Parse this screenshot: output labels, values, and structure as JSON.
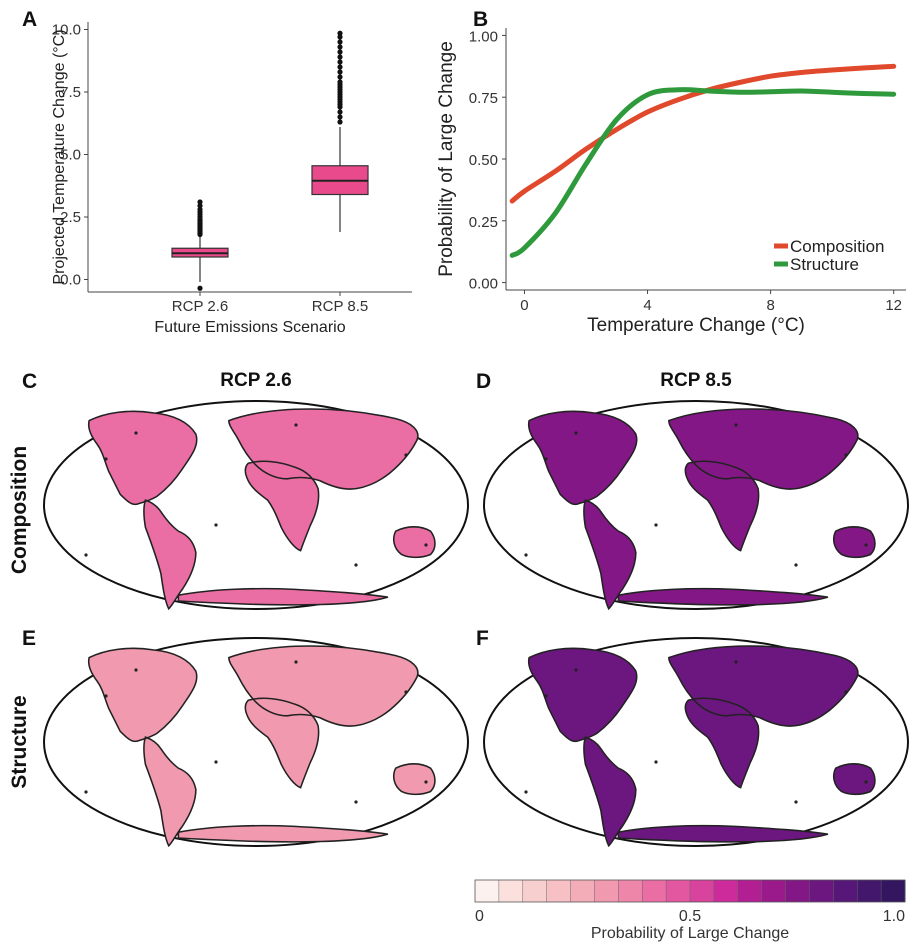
{
  "panel_letters": {
    "a": "A",
    "b": "B",
    "c": "C",
    "d": "D",
    "e": "E",
    "f": "F"
  },
  "colors": {
    "box_fill": "#e84a8b",
    "composition": "#e0492b",
    "structure": "#2e9a3c",
    "map_outline": "#111111"
  },
  "chart_data": [
    {
      "id": "A",
      "type": "box",
      "xlabel": "Future Emissions Scenario",
      "ylabel": "Projected Temperature Change (°C)",
      "categories": [
        "RCP 2.6",
        "RCP 8.5"
      ],
      "ylim": [
        -0.5,
        10.3
      ],
      "yticks": [
        0.0,
        2.5,
        5.0,
        7.5,
        10.0
      ],
      "ytick_labels": [
        "0.0",
        "2.5",
        "5.0",
        "7.5",
        "10.0"
      ],
      "boxes": [
        {
          "name": "RCP 2.6",
          "whisker_low": -0.1,
          "q1": 0.9,
          "median": 1.05,
          "q3": 1.25,
          "whisker_high": 1.75,
          "outliers": [
            1.8,
            1.85,
            1.9,
            1.95,
            2.0,
            2.05,
            2.1,
            2.15,
            2.2,
            2.25,
            2.3,
            2.35,
            2.4,
            2.5,
            2.6,
            2.7,
            2.8,
            2.95,
            3.1,
            -0.35
          ]
        },
        {
          "name": "RCP 8.5",
          "whisker_low": 1.9,
          "q1": 3.4,
          "median": 3.95,
          "q3": 4.55,
          "whisker_high": 6.1,
          "outliers": [
            6.3,
            6.5,
            6.7,
            6.9,
            7.0,
            7.1,
            7.2,
            7.3,
            7.4,
            7.5,
            7.6,
            7.7,
            7.8,
            7.9,
            8.1,
            8.3,
            8.5,
            8.7,
            8.9,
            9.1,
            9.3,
            9.5,
            9.7,
            9.85
          ]
        }
      ]
    },
    {
      "id": "B",
      "type": "line",
      "xlabel": "Temperature Change (°C)",
      "ylabel": "Probability of Large Change",
      "xlim": [
        -0.6,
        12.4
      ],
      "ylim": [
        -0.03,
        1.03
      ],
      "xticks": [
        0,
        4,
        8,
        12
      ],
      "xtick_labels": [
        "0",
        "4",
        "8",
        "12"
      ],
      "yticks": [
        0.0,
        0.25,
        0.5,
        0.75,
        1.0
      ],
      "ytick_labels": [
        "0.00",
        "0.25",
        "0.50",
        "0.75",
        "1.00"
      ],
      "legend_position": "bottom-right",
      "series": [
        {
          "name": "Composition",
          "color": "#e0492b",
          "x": [
            -0.4,
            0,
            1,
            2,
            3,
            4,
            5,
            6,
            7,
            8,
            9,
            10,
            11,
            12
          ],
          "y": [
            0.33,
            0.37,
            0.45,
            0.54,
            0.62,
            0.69,
            0.74,
            0.78,
            0.81,
            0.835,
            0.85,
            0.86,
            0.868,
            0.875
          ]
        },
        {
          "name": "Structure",
          "color": "#2e9a3c",
          "x": [
            -0.4,
            0,
            1,
            2,
            3,
            4,
            5,
            6,
            7,
            8,
            9,
            10,
            11,
            12
          ],
          "y": [
            0.11,
            0.14,
            0.28,
            0.48,
            0.66,
            0.76,
            0.78,
            0.775,
            0.77,
            0.772,
            0.775,
            0.77,
            0.765,
            0.762
          ]
        }
      ]
    },
    {
      "id": "C-F",
      "type": "heatmap",
      "column_headers": [
        "RCP 2.6",
        "RCP 8.5"
      ],
      "row_headers": [
        "Composition",
        "Structure"
      ],
      "panels": [
        {
          "letter": "C",
          "scenario": "RCP 2.6",
          "metric": "Composition",
          "mean_probability": 0.42
        },
        {
          "letter": "D",
          "scenario": "RCP 8.5",
          "metric": "Composition",
          "mean_probability": 0.78
        },
        {
          "letter": "E",
          "scenario": "RCP 2.6",
          "metric": "Structure",
          "mean_probability": 0.28
        },
        {
          "letter": "F",
          "scenario": "RCP 8.5",
          "metric": "Structure",
          "mean_probability": 0.8
        }
      ],
      "colorbar": {
        "title": "Probability of Large Change",
        "ticks": [
          0,
          0.5,
          1.0
        ],
        "tick_labels": [
          "0",
          "0.5",
          "1.0"
        ],
        "colors": [
          "#fdf1f0",
          "#fbe0de",
          "#f8cfcf",
          "#f6c0c4",
          "#f3adb8",
          "#f19aaf",
          "#ee86a9",
          "#ea6ea3",
          "#e2579f",
          "#d8439d",
          "#cd2b9c",
          "#b21f93",
          "#9a1a8c",
          "#831786",
          "#6c1680",
          "#561778",
          "#42176c",
          "#331560"
        ]
      }
    }
  ]
}
